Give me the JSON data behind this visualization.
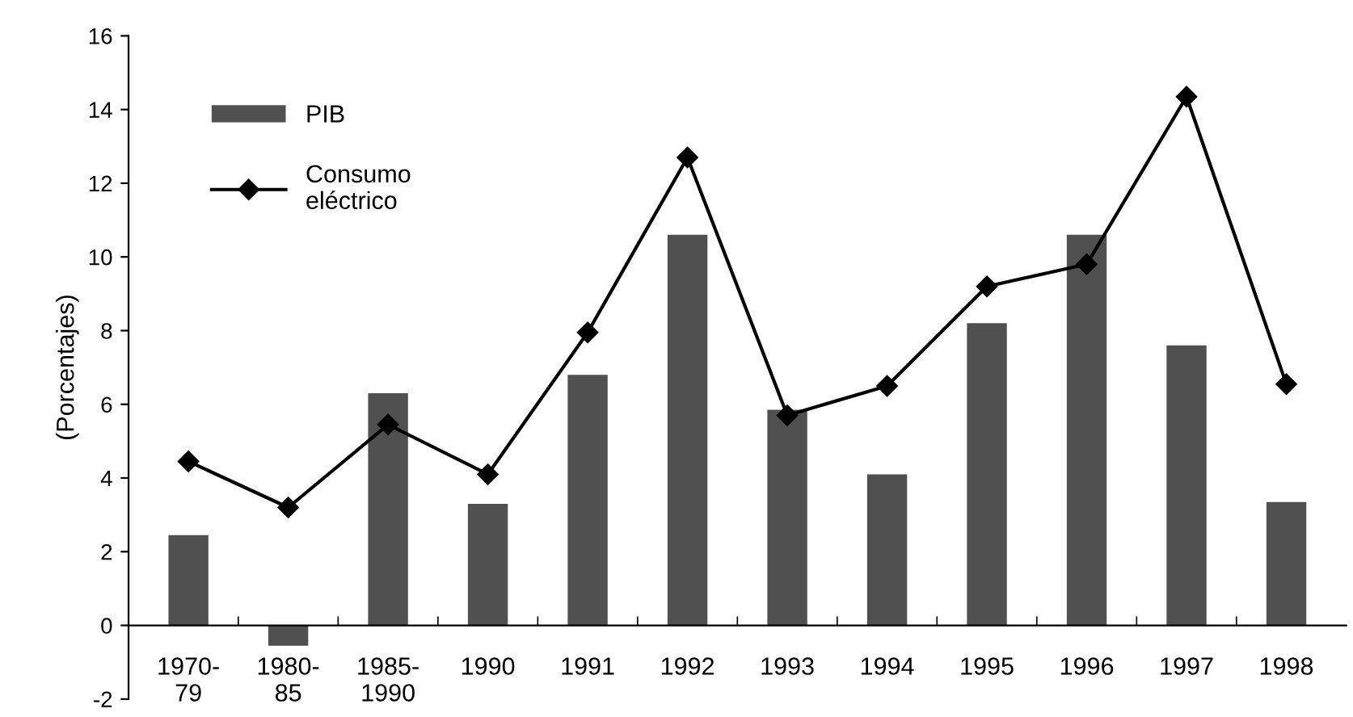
{
  "chart_data": {
    "type": "bar",
    "ylabel": "(Porcentajes)",
    "categories": [
      "1970-\n79",
      "1980-\n85",
      "1985-\n1990",
      "1990",
      "1991",
      "1992",
      "1993",
      "1994",
      "1995",
      "1996",
      "1997",
      "1998"
    ],
    "series": [
      {
        "name": "PIB",
        "color": "#505050",
        "values": [
          2.45,
          -0.55,
          6.3,
          3.3,
          6.8,
          10.6,
          5.85,
          4.1,
          8.2,
          10.6,
          7.6,
          3.35
        ]
      },
      {
        "name": "Consumo\neléctrico",
        "type": "line",
        "color": "#000000",
        "marker": "diamond",
        "values": [
          4.45,
          3.2,
          5.45,
          4.1,
          7.95,
          12.7,
          5.7,
          6.5,
          9.2,
          9.8,
          14.35,
          6.55
        ]
      }
    ],
    "ylim": [
      -2,
      16
    ],
    "yticks": [
      -2,
      0,
      2,
      4,
      6,
      8,
      10,
      12,
      14,
      16
    ],
    "grid": false,
    "legend": "top left"
  }
}
